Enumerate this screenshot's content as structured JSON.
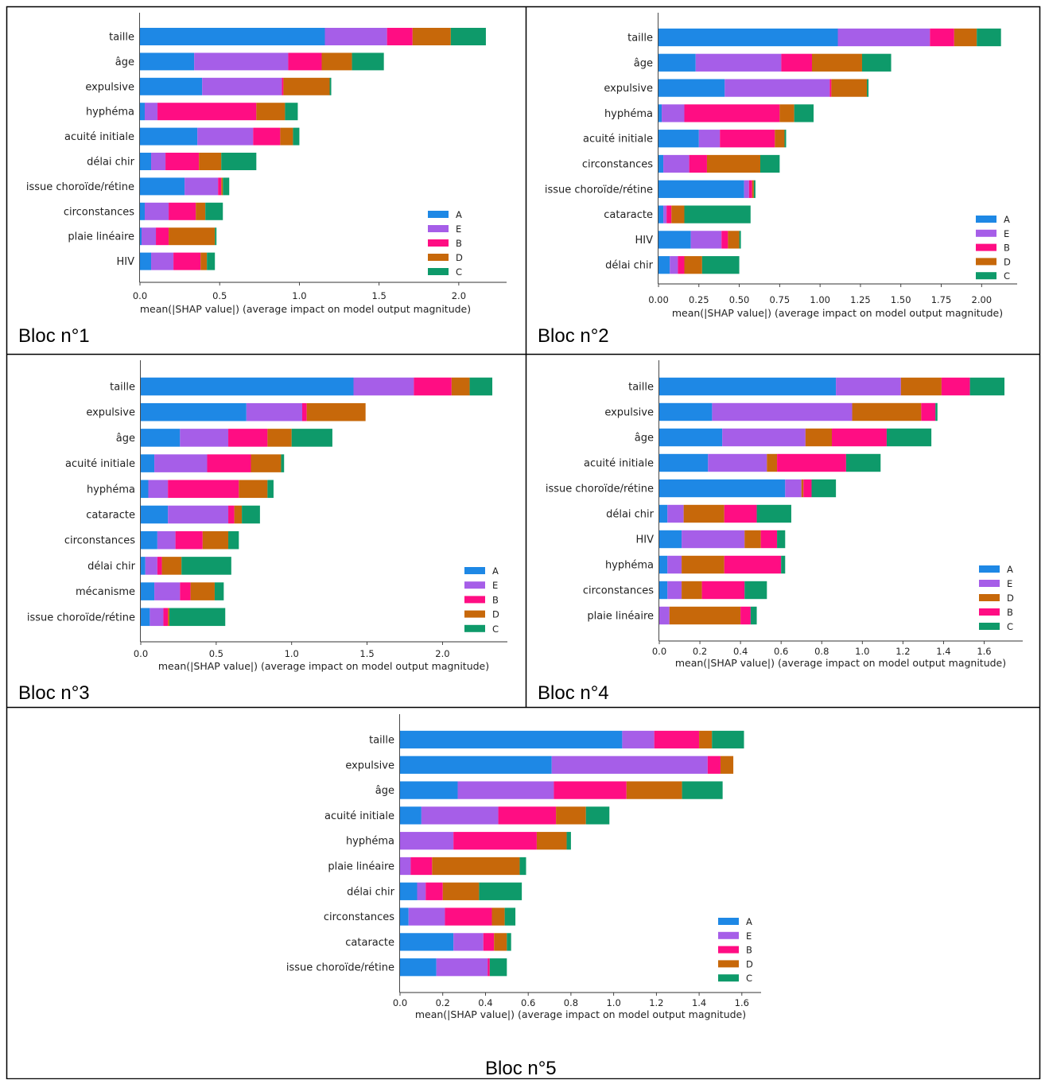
{
  "colors": {
    "A": "#1e88e5",
    "E": "#a65ee8",
    "B": "#ff0d83",
    "D": "#c7680a",
    "C": "#0e9a6a"
  },
  "xlabel": "mean(|SHAP value|) (average impact on model output magnitude)",
  "blocs": [
    {
      "label": "Bloc n°1",
      "chart_data": {
        "type": "bar",
        "orientation": "horizontal-stacked",
        "xlabel": "mean(|SHAP value|) (average impact on model output magnitude)",
        "xlim": [
          0,
          2.3
        ],
        "xticks": [
          "0.0",
          "0.5",
          "1.0",
          "1.5",
          "2.0"
        ],
        "xtick_values": [
          0,
          0.5,
          1.0,
          1.5,
          2.0
        ],
        "categories": [
          "taille",
          "âge",
          "expulsive",
          "hyphéma",
          "acuité initiale",
          "délai chir",
          "issue choroïde/rétine",
          "circonstances",
          "plaie linéaire",
          "HIV"
        ],
        "legend_order": [
          "A",
          "E",
          "B",
          "D",
          "C"
        ],
        "legend_placement": "lower-right",
        "series": [
          {
            "name": "A",
            "values": [
              1.16,
              0.34,
              0.39,
              0.03,
              0.36,
              0.07,
              0.28,
              0.03,
              0.01,
              0.07
            ]
          },
          {
            "name": "E",
            "values": [
              0.39,
              0.59,
              0.5,
              0.08,
              0.35,
              0.09,
              0.21,
              0.15,
              0.09,
              0.14
            ]
          },
          {
            "name": "B",
            "values": [
              0.16,
              0.21,
              0.01,
              0.62,
              0.17,
              0.21,
              0.02,
              0.17,
              0.08,
              0.17
            ]
          },
          {
            "name": "D",
            "values": [
              0.24,
              0.19,
              0.29,
              0.18,
              0.08,
              0.14,
              0.01,
              0.06,
              0.29,
              0.04
            ]
          },
          {
            "name": "C",
            "values": [
              0.22,
              0.2,
              0.01,
              0.08,
              0.04,
              0.22,
              0.04,
              0.11,
              0.01,
              0.05
            ]
          }
        ]
      }
    },
    {
      "label": "Bloc n°2",
      "chart_data": {
        "type": "bar",
        "orientation": "horizontal-stacked",
        "xlabel": "mean(|SHAP value|) (average impact on model output magnitude)",
        "xlim": [
          0,
          2.22
        ],
        "xticks": [
          "0.00",
          "0.25",
          "0.50",
          "0.75",
          "1.00",
          "1.25",
          "1.50",
          "1.75",
          "2.00"
        ],
        "xtick_values": [
          0,
          0.25,
          0.5,
          0.75,
          1.0,
          1.25,
          1.5,
          1.75,
          2.0
        ],
        "categories": [
          "taille",
          "âge",
          "expulsive",
          "hyphéma",
          "acuité initiale",
          "circonstances",
          "issue choroïde/rétine",
          "cataracte",
          "HIV",
          "délai chir"
        ],
        "legend_order": [
          "A",
          "E",
          "B",
          "D",
          "C"
        ],
        "legend_placement": "lower-right",
        "series": [
          {
            "name": "A",
            "values": [
              1.11,
              0.23,
              0.41,
              0.02,
              0.25,
              0.03,
              0.53,
              0.03,
              0.2,
              0.07
            ]
          },
          {
            "name": "E",
            "values": [
              0.57,
              0.53,
              0.65,
              0.14,
              0.13,
              0.16,
              0.03,
              0.02,
              0.19,
              0.05
            ]
          },
          {
            "name": "B",
            "values": [
              0.15,
              0.19,
              0.01,
              0.59,
              0.34,
              0.11,
              0.02,
              0.03,
              0.04,
              0.04
            ]
          },
          {
            "name": "D",
            "values": [
              0.14,
              0.31,
              0.22,
              0.09,
              0.06,
              0.33,
              0.01,
              0.08,
              0.07,
              0.11
            ]
          },
          {
            "name": "C",
            "values": [
              0.15,
              0.18,
              0.01,
              0.12,
              0.01,
              0.12,
              0.01,
              0.41,
              0.01,
              0.23
            ]
          }
        ]
      }
    },
    {
      "label": "Bloc n°3",
      "chart_data": {
        "type": "bar",
        "orientation": "horizontal-stacked",
        "xlabel": "mean(|SHAP value|) (average impact on model output magnitude)",
        "xlim": [
          0,
          2.43
        ],
        "xticks": [
          "0.0",
          "0.5",
          "1.0",
          "1.5",
          "2.0"
        ],
        "xtick_values": [
          0,
          0.5,
          1.0,
          1.5,
          2.0
        ],
        "categories": [
          "taille",
          "expulsive",
          "âge",
          "acuité initiale",
          "hyphéma",
          "cataracte",
          "circonstances",
          "délai chir",
          "mécanisme",
          "issue choroïde/rétine"
        ],
        "legend_order": [
          "A",
          "E",
          "B",
          "D",
          "C"
        ],
        "legend_placement": "lower-right",
        "series": [
          {
            "name": "A",
            "values": [
              1.41,
              0.7,
              0.26,
              0.09,
              0.05,
              0.18,
              0.11,
              0.03,
              0.09,
              0.06
            ]
          },
          {
            "name": "E",
            "values": [
              0.4,
              0.37,
              0.32,
              0.35,
              0.13,
              0.4,
              0.12,
              0.08,
              0.17,
              0.09
            ]
          },
          {
            "name": "B",
            "values": [
              0.25,
              0.03,
              0.26,
              0.29,
              0.47,
              0.04,
              0.18,
              0.03,
              0.07,
              0.03
            ]
          },
          {
            "name": "D",
            "values": [
              0.12,
              0.39,
              0.16,
              0.2,
              0.19,
              0.05,
              0.17,
              0.13,
              0.16,
              0.01
            ]
          },
          {
            "name": "C",
            "values": [
              0.15,
              0.0,
              0.27,
              0.02,
              0.04,
              0.12,
              0.07,
              0.33,
              0.06,
              0.37
            ]
          }
        ]
      }
    },
    {
      "label": "Bloc n°4",
      "chart_data": {
        "type": "bar",
        "orientation": "horizontal-stacked",
        "xlabel": "mean(|SHAP value|) (average impact on model output magnitude)",
        "xlim": [
          0,
          1.79
        ],
        "xticks": [
          "0.0",
          "0.2",
          "0.4",
          "0.6",
          "0.8",
          "1.0",
          "1.2",
          "1.4",
          "1.6"
        ],
        "xtick_values": [
          0,
          0.2,
          0.4,
          0.6,
          0.8,
          1.0,
          1.2,
          1.4,
          1.6
        ],
        "categories": [
          "taille",
          "expulsive",
          "âge",
          "acuité initiale",
          "issue choroïde/rétine",
          "délai chir",
          "HIV",
          "hyphéma",
          "circonstances",
          "plaie linéaire"
        ],
        "legend_order": [
          "A",
          "E",
          "D",
          "B",
          "C"
        ],
        "legend_placement": "lower-right",
        "series": [
          {
            "name": "A",
            "values": [
              0.87,
              0.26,
              0.31,
              0.24,
              0.62,
              0.04,
              0.11,
              0.04,
              0.04,
              0.0
            ]
          },
          {
            "name": "E",
            "values": [
              0.32,
              0.69,
              0.41,
              0.29,
              0.08,
              0.08,
              0.31,
              0.07,
              0.07,
              0.05
            ]
          },
          {
            "name": "D",
            "values": [
              0.2,
              0.34,
              0.13,
              0.05,
              0.01,
              0.2,
              0.08,
              0.21,
              0.1,
              0.35
            ]
          },
          {
            "name": "B",
            "values": [
              0.14,
              0.07,
              0.27,
              0.34,
              0.04,
              0.16,
              0.08,
              0.28,
              0.21,
              0.05
            ]
          },
          {
            "name": "C",
            "values": [
              0.17,
              0.01,
              0.22,
              0.17,
              0.12,
              0.17,
              0.04,
              0.02,
              0.11,
              0.03
            ]
          }
        ]
      }
    },
    {
      "label": "Bloc n°5",
      "chart_data": {
        "type": "bar",
        "orientation": "horizontal-stacked",
        "xlabel": "mean(|SHAP value|) (average impact on model output magnitude)",
        "xlim": [
          0,
          1.69
        ],
        "xticks": [
          "0.0",
          "0.2",
          "0.4",
          "0.6",
          "0.8",
          "1.0",
          "1.2",
          "1.4",
          "1.6"
        ],
        "xtick_values": [
          0,
          0.2,
          0.4,
          0.6,
          0.8,
          1.0,
          1.2,
          1.4,
          1.6
        ],
        "categories": [
          "taille",
          "expulsive",
          "âge",
          "acuité initiale",
          "hyphéma",
          "plaie linéaire",
          "délai chir",
          "circonstances",
          "cataracte",
          "issue choroïde/rétine"
        ],
        "legend_order": [
          "A",
          "E",
          "B",
          "D",
          "C"
        ],
        "legend_placement": "lower-right",
        "series": [
          {
            "name": "A",
            "values": [
              1.04,
              0.71,
              0.27,
              0.1,
              0.0,
              0.0,
              0.08,
              0.04,
              0.25,
              0.17
            ]
          },
          {
            "name": "E",
            "values": [
              0.15,
              0.73,
              0.45,
              0.36,
              0.25,
              0.05,
              0.04,
              0.17,
              0.14,
              0.24
            ]
          },
          {
            "name": "B",
            "values": [
              0.21,
              0.06,
              0.34,
              0.27,
              0.39,
              0.1,
              0.08,
              0.22,
              0.05,
              0.01
            ]
          },
          {
            "name": "D",
            "values": [
              0.06,
              0.06,
              0.26,
              0.14,
              0.14,
              0.41,
              0.17,
              0.06,
              0.06,
              0.0
            ]
          },
          {
            "name": "C",
            "values": [
              0.15,
              0.0,
              0.19,
              0.11,
              0.02,
              0.03,
              0.2,
              0.05,
              0.02,
              0.08
            ]
          }
        ]
      }
    }
  ]
}
